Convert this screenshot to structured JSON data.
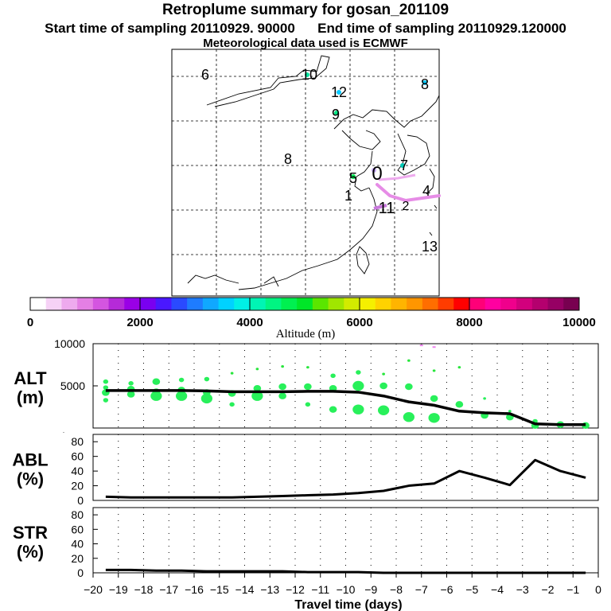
{
  "title": "Retroplume summary for gosan_201109",
  "subtitle": "Start time of sampling 20110929. 90000      End time of sampling 20110929.120000",
  "met_line": "Meteorological data used is ECMWF",
  "map": {
    "labels": [
      {
        "text": "6",
        "color": "#000000"
      },
      {
        "text": "10",
        "color": "#000000"
      },
      {
        "text": "12",
        "color": "#000000"
      },
      {
        "text": "8",
        "color": "#000000"
      },
      {
        "text": "9",
        "color": "#000000"
      },
      {
        "text": "8",
        "color": "#000000"
      },
      {
        "text": "0",
        "color": "#000000"
      },
      {
        "text": "7",
        "color": "#000000"
      },
      {
        "text": "5",
        "color": "#000000"
      },
      {
        "text": "1",
        "color": "#000000"
      },
      {
        "text": "4",
        "color": "#000000"
      },
      {
        "text": "11",
        "color": "#000000"
      },
      {
        "text": "2",
        "color": "#000000"
      },
      {
        "text": "13",
        "color": "#000000"
      }
    ]
  },
  "colorbar": {
    "label": "Altitude (m)",
    "ticks": [
      "0",
      "2000",
      "4000",
      "6000",
      "8000",
      "10000"
    ],
    "colors": [
      "#ffffff",
      "#f6d2f6",
      "#eeaaee",
      "#e47fe4",
      "#d455e0",
      "#b52ad8",
      "#9a00e6",
      "#7a00f0",
      "#4a18ff",
      "#2a4aff",
      "#1e7cff",
      "#10a8ff",
      "#00d2ff",
      "#00f0e6",
      "#00f5b4",
      "#00f582",
      "#00f050",
      "#00e628",
      "#5ae600",
      "#a0e600",
      "#d2eb00",
      "#f5f000",
      "#ffd200",
      "#ffb400",
      "#ff9600",
      "#ff6e00",
      "#ff3c00",
      "#ff0000",
      "#ff0078",
      "#ff00a0",
      "#f0008c",
      "#d2007d",
      "#b4006e",
      "#960064",
      "#780050"
    ]
  },
  "chart_data": [
    {
      "type": "scatter+line",
      "name": "ALT",
      "ylabel": "ALT\n(m)",
      "ylabel_line1": "ALT",
      "ylabel_line2": "(m)",
      "ylim": [
        0,
        10000
      ],
      "yticks": [
        "0",
        "5000",
        "10000"
      ],
      "yticks_shown": [
        "5000",
        "10000"
      ],
      "xlim": [
        -20,
        0
      ],
      "line": {
        "x": [
          -19.5,
          -18.5,
          -17.5,
          -16.5,
          -15.5,
          -14.5,
          -13.5,
          -12.5,
          -11.5,
          -10.5,
          -9.5,
          -8.5,
          -7.5,
          -6.5,
          -5.5,
          -4.5,
          -3.5,
          -2.5,
          -1.5,
          -0.5
        ],
        "y": [
          4450,
          4450,
          4450,
          4450,
          4400,
          4300,
          4300,
          4300,
          4350,
          4350,
          4250,
          3800,
          3100,
          2700,
          2000,
          1800,
          1700,
          500,
          400,
          400
        ]
      },
      "points": {
        "x": [
          -19.5,
          -19.5,
          -19.5,
          -19.5,
          -18.5,
          -18.5,
          -18.5,
          -17.5,
          -17.5,
          -17.5,
          -16.5,
          -16.5,
          -16.5,
          -15.5,
          -15.5,
          -15.5,
          -14.5,
          -14.5,
          -14.5,
          -13.5,
          -13.5,
          -13.5,
          -12.5,
          -12.5,
          -12.5,
          -11.5,
          -11.5,
          -11.5,
          -10.5,
          -10.5,
          -10.5,
          -9.5,
          -9.5,
          -9.5,
          -8.5,
          -8.5,
          -8.5,
          -7.5,
          -7.5,
          -7.5,
          -6.5,
          -6.5,
          -6.5,
          -5.5,
          -5.5,
          -4.5,
          -4.5,
          -3.5,
          -3.5,
          -2.5,
          -2.5,
          -1.5,
          -0.5
        ],
        "y": [
          5500,
          4800,
          4200,
          3300,
          5300,
          4600,
          4000,
          5500,
          4300,
          3800,
          5700,
          4500,
          3800,
          5800,
          4200,
          3500,
          6500,
          4100,
          2800,
          7000,
          4700,
          3800,
          7300,
          4900,
          3800,
          7200,
          4900,
          2800,
          6200,
          4700,
          2200,
          6600,
          5000,
          2200,
          6400,
          5000,
          2100,
          8000,
          4900,
          1300,
          6800,
          3500,
          1200,
          7200,
          2800,
          3500,
          1500,
          2000,
          1300,
          800,
          300,
          400,
          300
        ],
        "size_class": [
          2,
          2,
          3,
          2,
          2,
          3,
          3,
          3,
          3,
          4,
          2,
          3,
          4,
          2,
          3,
          4,
          1,
          3,
          2,
          1,
          3,
          4,
          1,
          3,
          3,
          1,
          3,
          2,
          2,
          3,
          3,
          2,
          4,
          4,
          1,
          3,
          4,
          1,
          3,
          4,
          1,
          3,
          4,
          1,
          3,
          1,
          3,
          1,
          3,
          2,
          3,
          3,
          3
        ]
      }
    },
    {
      "type": "line",
      "name": "ABL",
      "ylabel_line1": "ABL",
      "ylabel_line2": "(%)",
      "ylim": [
        0,
        90
      ],
      "yticks": [
        "0",
        "20",
        "40",
        "60",
        "80"
      ],
      "xlim": [
        -20,
        0
      ],
      "x": [
        -19.5,
        -18.5,
        -17.5,
        -16.5,
        -15.5,
        -14.5,
        -13.5,
        -12.5,
        -11.5,
        -10.5,
        -9.5,
        -8.5,
        -7.5,
        -6.5,
        -5.5,
        -4.5,
        -3.5,
        -2.5,
        -1.5,
        -0.5
      ],
      "y": [
        5,
        4,
        4,
        4,
        4,
        4,
        5,
        6,
        7,
        8,
        10,
        13,
        20,
        23,
        40,
        31,
        21,
        55,
        40,
        31
      ]
    },
    {
      "type": "line",
      "name": "STR",
      "ylabel_line1": "STR",
      "ylabel_line2": "(%)",
      "ylim": [
        0,
        90
      ],
      "yticks": [
        "0",
        "20",
        "40",
        "60",
        "80"
      ],
      "xlim": [
        -20,
        0
      ],
      "xlabel": "Travel time (days)",
      "xticks": [
        "−20",
        "−19",
        "−18",
        "−17",
        "−16",
        "−15",
        "−14",
        "−13",
        "−12",
        "−11",
        "−10",
        "−9",
        "−8",
        "−7",
        "−6",
        "−5",
        "−4",
        "−3",
        "−2",
        "−1",
        "0"
      ],
      "x": [
        -19.5,
        -18.5,
        -17.5,
        -16.5,
        -15.5,
        -14.5,
        -13.5,
        -12.5,
        -11.5,
        -10.5,
        -9.5,
        -8.5,
        -7.5,
        -6.5,
        -5.5,
        -4.5,
        -3.5,
        -2.5,
        -1.5,
        -0.5
      ],
      "y": [
        4,
        4,
        3,
        3,
        2,
        2,
        2,
        2,
        1,
        1,
        1,
        0,
        0,
        0,
        0,
        0,
        0,
        0,
        0,
        0
      ]
    }
  ]
}
